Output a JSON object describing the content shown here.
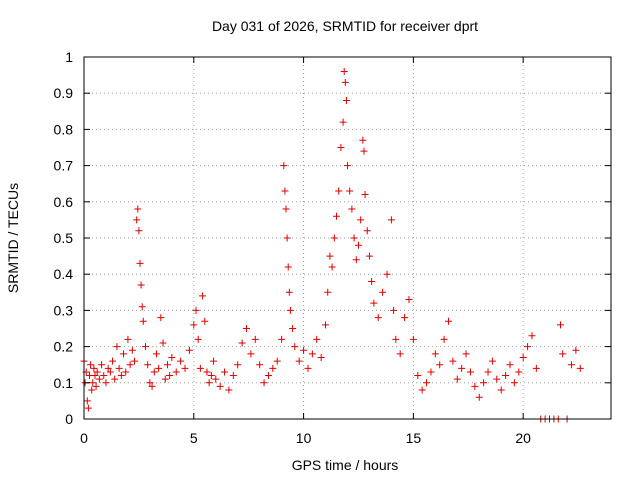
{
  "chart_data": {
    "type": "scatter",
    "title": "Day 031 of 2026, SRMTID for receiver dprt",
    "xlabel": "GPS time / hours",
    "ylabel": "SRMTID / TECUs",
    "xlim": [
      0,
      24
    ],
    "ylim": [
      0,
      1
    ],
    "xticks": [
      0,
      5,
      10,
      15,
      20
    ],
    "xtick_labels": [
      "0",
      "5",
      "10",
      "15",
      "20"
    ],
    "yticks": [
      0,
      0.1,
      0.2,
      0.3,
      0.4,
      0.5,
      0.6,
      0.7,
      0.8,
      0.9,
      1
    ],
    "ytick_labels": [
      "0",
      "0.1",
      "0.2",
      "0.3",
      "0.4",
      "0.5",
      "0.6",
      "0.7",
      "0.8",
      "0.9",
      "1"
    ],
    "grid": true,
    "marker": "+",
    "color": "#e00000",
    "series": [
      {
        "name": "SRMTID",
        "points": [
          [
            0.0,
            0.16
          ],
          [
            0.05,
            0.1
          ],
          [
            0.1,
            0.13
          ],
          [
            0.15,
            0.05
          ],
          [
            0.2,
            0.03
          ],
          [
            0.25,
            0.12
          ],
          [
            0.3,
            0.15
          ],
          [
            0.35,
            0.08
          ],
          [
            0.4,
            0.1
          ],
          [
            0.45,
            0.14
          ],
          [
            0.5,
            0.12
          ],
          [
            0.55,
            0.09
          ],
          [
            0.6,
            0.13
          ],
          [
            0.7,
            0.11
          ],
          [
            0.8,
            0.15
          ],
          [
            0.9,
            0.12
          ],
          [
            1.0,
            0.1
          ],
          [
            1.1,
            0.14
          ],
          [
            1.2,
            0.13
          ],
          [
            1.3,
            0.16
          ],
          [
            1.4,
            0.11
          ],
          [
            1.5,
            0.2
          ],
          [
            1.6,
            0.14
          ],
          [
            1.7,
            0.12
          ],
          [
            1.8,
            0.18
          ],
          [
            1.9,
            0.13
          ],
          [
            2.0,
            0.22
          ],
          [
            2.1,
            0.15
          ],
          [
            2.2,
            0.19
          ],
          [
            2.3,
            0.16
          ],
          [
            2.4,
            0.55
          ],
          [
            2.45,
            0.58
          ],
          [
            2.5,
            0.52
          ],
          [
            2.55,
            0.43
          ],
          [
            2.6,
            0.37
          ],
          [
            2.65,
            0.31
          ],
          [
            2.7,
            0.27
          ],
          [
            2.8,
            0.2
          ],
          [
            2.9,
            0.15
          ],
          [
            3.0,
            0.1
          ],
          [
            3.1,
            0.09
          ],
          [
            3.2,
            0.13
          ],
          [
            3.3,
            0.18
          ],
          [
            3.4,
            0.14
          ],
          [
            3.5,
            0.28
          ],
          [
            3.6,
            0.21
          ],
          [
            3.7,
            0.11
          ],
          [
            3.8,
            0.15
          ],
          [
            3.9,
            0.12
          ],
          [
            4.0,
            0.17
          ],
          [
            4.2,
            0.13
          ],
          [
            4.4,
            0.16
          ],
          [
            4.6,
            0.14
          ],
          [
            4.8,
            0.19
          ],
          [
            5.0,
            0.26
          ],
          [
            5.1,
            0.3
          ],
          [
            5.2,
            0.22
          ],
          [
            5.3,
            0.14
          ],
          [
            5.4,
            0.34
          ],
          [
            5.5,
            0.27
          ],
          [
            5.6,
            0.13
          ],
          [
            5.7,
            0.1
          ],
          [
            5.8,
            0.12
          ],
          [
            5.9,
            0.16
          ],
          [
            6.0,
            0.11
          ],
          [
            6.2,
            0.09
          ],
          [
            6.4,
            0.13
          ],
          [
            6.6,
            0.08
          ],
          [
            6.8,
            0.12
          ],
          [
            7.0,
            0.15
          ],
          [
            7.2,
            0.21
          ],
          [
            7.4,
            0.25
          ],
          [
            7.6,
            0.18
          ],
          [
            7.8,
            0.22
          ],
          [
            8.0,
            0.15
          ],
          [
            8.2,
            0.1
          ],
          [
            8.4,
            0.12
          ],
          [
            8.6,
            0.14
          ],
          [
            8.8,
            0.16
          ],
          [
            9.0,
            0.22
          ],
          [
            9.1,
            0.7
          ],
          [
            9.15,
            0.63
          ],
          [
            9.2,
            0.58
          ],
          [
            9.25,
            0.5
          ],
          [
            9.3,
            0.42
          ],
          [
            9.35,
            0.35
          ],
          [
            9.4,
            0.3
          ],
          [
            9.5,
            0.25
          ],
          [
            9.6,
            0.2
          ],
          [
            9.8,
            0.16
          ],
          [
            10.0,
            0.19
          ],
          [
            10.2,
            0.14
          ],
          [
            10.4,
            0.18
          ],
          [
            10.6,
            0.22
          ],
          [
            10.8,
            0.17
          ],
          [
            11.0,
            0.26
          ],
          [
            11.1,
            0.35
          ],
          [
            11.2,
            0.45
          ],
          [
            11.3,
            0.42
          ],
          [
            11.4,
            0.5
          ],
          [
            11.5,
            0.56
          ],
          [
            11.6,
            0.63
          ],
          [
            11.7,
            0.75
          ],
          [
            11.8,
            0.82
          ],
          [
            11.85,
            0.96
          ],
          [
            11.9,
            0.93
          ],
          [
            11.95,
            0.88
          ],
          [
            12.0,
            0.7
          ],
          [
            12.1,
            0.63
          ],
          [
            12.2,
            0.58
          ],
          [
            12.3,
            0.5
          ],
          [
            12.4,
            0.44
          ],
          [
            12.5,
            0.48
          ],
          [
            12.6,
            0.55
          ],
          [
            12.7,
            0.77
          ],
          [
            12.75,
            0.74
          ],
          [
            12.8,
            0.62
          ],
          [
            12.9,
            0.52
          ],
          [
            13.0,
            0.45
          ],
          [
            13.1,
            0.38
          ],
          [
            13.2,
            0.32
          ],
          [
            13.4,
            0.28
          ],
          [
            13.6,
            0.35
          ],
          [
            13.8,
            0.4
          ],
          [
            14.0,
            0.55
          ],
          [
            14.1,
            0.3
          ],
          [
            14.2,
            0.22
          ],
          [
            14.4,
            0.18
          ],
          [
            14.6,
            0.28
          ],
          [
            14.8,
            0.33
          ],
          [
            15.0,
            0.22
          ],
          [
            15.2,
            0.12
          ],
          [
            15.4,
            0.08
          ],
          [
            15.6,
            0.1
          ],
          [
            15.8,
            0.13
          ],
          [
            16.0,
            0.18
          ],
          [
            16.2,
            0.15
          ],
          [
            16.4,
            0.22
          ],
          [
            16.6,
            0.27
          ],
          [
            16.8,
            0.16
          ],
          [
            17.0,
            0.11
          ],
          [
            17.2,
            0.14
          ],
          [
            17.4,
            0.18
          ],
          [
            17.6,
            0.13
          ],
          [
            17.8,
            0.09
          ],
          [
            18.0,
            0.06
          ],
          [
            18.2,
            0.1
          ],
          [
            18.4,
            0.13
          ],
          [
            18.6,
            0.16
          ],
          [
            18.8,
            0.11
          ],
          [
            19.0,
            0.08
          ],
          [
            19.2,
            0.12
          ],
          [
            19.4,
            0.15
          ],
          [
            19.6,
            0.1
          ],
          [
            19.8,
            0.13
          ],
          [
            20.0,
            0.17
          ],
          [
            20.2,
            0.2
          ],
          [
            20.4,
            0.23
          ],
          [
            20.6,
            0.14
          ],
          [
            20.8,
            0.0
          ],
          [
            21.0,
            0.0
          ],
          [
            21.2,
            0.0
          ],
          [
            21.4,
            0.0
          ],
          [
            21.6,
            0.0
          ],
          [
            21.7,
            0.26
          ],
          [
            21.8,
            0.18
          ],
          [
            22.0,
            0.0
          ],
          [
            22.2,
            0.15
          ],
          [
            22.4,
            0.19
          ],
          [
            22.6,
            0.14
          ]
        ]
      }
    ]
  }
}
